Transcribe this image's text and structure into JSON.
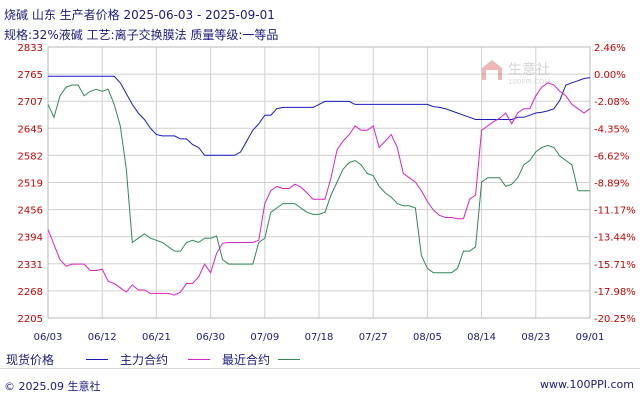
{
  "header": {
    "title_line1": "烧碱 山东 生产者价格 2025-06-03 - 2025-09-01",
    "title_line2": "规格:32%液碱 工艺:离子交换膜法 质量等级:一等品"
  },
  "watermark": {
    "logo_text": "生意社",
    "logo_sub": "100PPI.COM"
  },
  "footer": {
    "copyright": "© 2025.09 生意社",
    "site": "www.100PPI.com"
  },
  "colors": {
    "spot": "#1a1acc",
    "main_contract": "#e020c8",
    "recent_contract": "#2e8b57",
    "grid": "#d0d0d0",
    "axis_text": "#cc0000",
    "label_text": "#1a1a80"
  },
  "chart_data": {
    "type": "line",
    "title": "",
    "xlabel": "",
    "ylabel": "",
    "ylim": [
      2205,
      2833
    ],
    "y2lim": [
      -20.25,
      2.46
    ],
    "y_ticks": [
      2833,
      2765,
      2707,
      2645,
      2582,
      2519,
      2456,
      2394,
      2331,
      2268,
      2205
    ],
    "y2_ticks": [
      "2.46%",
      "0.00%",
      "-2.08%",
      "-4.35%",
      "-6.62%",
      "-8.89%",
      "-11.17%",
      "-13.44%",
      "-15.71%",
      "-17.98%",
      "-20.25%"
    ],
    "x_ticks": [
      "06/03",
      "06/12",
      "06/21",
      "06/30",
      "07/09",
      "07/18",
      "07/27",
      "08/05",
      "08/14",
      "08/23",
      "09/01"
    ],
    "x": [
      "06/03",
      "06/04",
      "06/05",
      "06/06",
      "06/07",
      "06/08",
      "06/09",
      "06/10",
      "06/11",
      "06/12",
      "06/13",
      "06/14",
      "06/15",
      "06/16",
      "06/17",
      "06/18",
      "06/19",
      "06/20",
      "06/21",
      "06/22",
      "06/23",
      "06/24",
      "06/25",
      "06/26",
      "06/27",
      "06/28",
      "06/29",
      "06/30",
      "07/01",
      "07/02",
      "07/03",
      "07/04",
      "07/05",
      "07/06",
      "07/07",
      "07/08",
      "07/09",
      "07/10",
      "07/11",
      "07/12",
      "07/13",
      "07/14",
      "07/15",
      "07/16",
      "07/17",
      "07/18",
      "07/19",
      "07/20",
      "07/21",
      "07/22",
      "07/23",
      "07/24",
      "07/25",
      "07/26",
      "07/27",
      "07/28",
      "07/29",
      "07/30",
      "07/31",
      "08/01",
      "08/02",
      "08/03",
      "08/04",
      "08/05",
      "08/06",
      "08/07",
      "08/08",
      "08/09",
      "08/10",
      "08/11",
      "08/12",
      "08/13",
      "08/14",
      "08/15",
      "08/16",
      "08/17",
      "08/18",
      "08/19",
      "08/20",
      "08/21",
      "08/22",
      "08/23",
      "08/24",
      "08/25",
      "08/26",
      "08/27",
      "08/28",
      "08/29",
      "08/30",
      "08/31",
      "09/01"
    ],
    "series": [
      {
        "name": "现货价格",
        "values": [
          2765,
          2765,
          2765,
          2765,
          2765,
          2765,
          2765,
          2765,
          2765,
          2765,
          2765,
          2765,
          2750,
          2725,
          2700,
          2680,
          2665,
          2645,
          2630,
          2627,
          2627,
          2627,
          2620,
          2620,
          2607,
          2600,
          2582,
          2582,
          2582,
          2582,
          2582,
          2582,
          2590,
          2615,
          2640,
          2655,
          2675,
          2675,
          2690,
          2693,
          2693,
          2693,
          2693,
          2693,
          2693,
          2700,
          2707,
          2707,
          2707,
          2707,
          2707,
          2700,
          2700,
          2700,
          2700,
          2700,
          2700,
          2700,
          2700,
          2700,
          2700,
          2700,
          2700,
          2700,
          2695,
          2693,
          2690,
          2685,
          2680,
          2675,
          2670,
          2665,
          2665,
          2665,
          2665,
          2665,
          2665,
          2665,
          2670,
          2670,
          2675,
          2680,
          2682,
          2685,
          2690,
          2710,
          2745,
          2750,
          2755,
          2760,
          2762
        ]
      },
      {
        "name": "主力合约",
        "values": [
          2410,
          2375,
          2340,
          2325,
          2330,
          2330,
          2330,
          2315,
          2315,
          2318,
          2290,
          2285,
          2275,
          2265,
          2282,
          2270,
          2270,
          2262,
          2262,
          2262,
          2262,
          2258,
          2265,
          2285,
          2285,
          2300,
          2330,
          2310,
          2355,
          2378,
          2380,
          2380,
          2380,
          2380,
          2380,
          2385,
          2470,
          2500,
          2510,
          2505,
          2505,
          2515,
          2508,
          2495,
          2480,
          2480,
          2480,
          2530,
          2595,
          2615,
          2630,
          2650,
          2640,
          2640,
          2650,
          2600,
          2615,
          2630,
          2600,
          2540,
          2530,
          2520,
          2500,
          2475,
          2455,
          2443,
          2438,
          2438,
          2435,
          2435,
          2480,
          2490,
          2640,
          2650,
          2660,
          2668,
          2680,
          2655,
          2680,
          2690,
          2690,
          2720,
          2740,
          2750,
          2745,
          2730,
          2720,
          2700,
          2690,
          2680,
          2690
        ]
      },
      {
        "name": "最近合约",
        "values": [
          2700,
          2670,
          2720,
          2740,
          2745,
          2745,
          2720,
          2730,
          2735,
          2730,
          2735,
          2700,
          2650,
          2550,
          2380,
          2390,
          2400,
          2390,
          2385,
          2380,
          2370,
          2360,
          2360,
          2380,
          2385,
          2380,
          2390,
          2390,
          2395,
          2340,
          2330,
          2330,
          2330,
          2330,
          2330,
          2380,
          2390,
          2450,
          2460,
          2470,
          2470,
          2470,
          2460,
          2450,
          2445,
          2445,
          2450,
          2490,
          2520,
          2550,
          2565,
          2570,
          2560,
          2540,
          2535,
          2510,
          2495,
          2485,
          2470,
          2465,
          2465,
          2460,
          2350,
          2320,
          2310,
          2310,
          2310,
          2310,
          2320,
          2360,
          2360,
          2370,
          2520,
          2530,
          2530,
          2530,
          2510,
          2515,
          2530,
          2560,
          2570,
          2590,
          2600,
          2605,
          2600,
          2580,
          2570,
          2560,
          2500,
          2500,
          2500
        ]
      }
    ]
  }
}
